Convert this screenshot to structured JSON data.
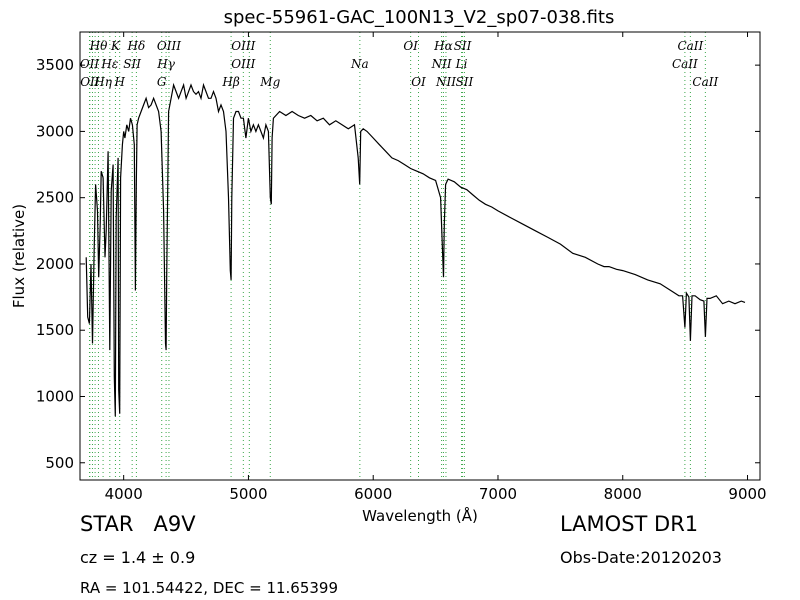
{
  "chart_data": {
    "type": "line",
    "title": "spec-55961-GAC_100N13_V2_sp07-038.fits",
    "xlabel": "Wavelength (Å)",
    "ylabel": "Flux (relative)",
    "xlim": [
      3650,
      9100
    ],
    "ylim": [
      370,
      3750
    ],
    "xticks": [
      4000,
      5000,
      6000,
      7000,
      8000,
      9000
    ],
    "yticks": [
      500,
      1000,
      1500,
      2000,
      2500,
      3000,
      3500
    ],
    "grid": false,
    "series": [
      {
        "color": "#000000",
        "x": [
          3700,
          3712,
          3725,
          3738,
          3750,
          3762,
          3775,
          3790,
          3800,
          3812,
          3820,
          3835,
          3850,
          3860,
          3875,
          3889,
          3900,
          3915,
          3925,
          3933,
          3940,
          3955,
          3960,
          3968,
          3975,
          3990,
          4000,
          4010,
          4025,
          4040,
          4055,
          4070,
          4085,
          4094,
          4101,
          4108,
          4120,
          4140,
          4160,
          4180,
          4200,
          4220,
          4240,
          4260,
          4280,
          4300,
          4320,
          4335,
          4340,
          4345,
          4360,
          4380,
          4400,
          4420,
          4440,
          4460,
          4480,
          4500,
          4520,
          4540,
          4560,
          4580,
          4600,
          4620,
          4640,
          4660,
          4680,
          4700,
          4720,
          4740,
          4760,
          4780,
          4800,
          4820,
          4840,
          4855,
          4861,
          4867,
          4880,
          4900,
          4920,
          4940,
          4960,
          4980,
          5000,
          5020,
          5040,
          5060,
          5080,
          5100,
          5120,
          5140,
          5160,
          5175,
          5183,
          5190,
          5200,
          5250,
          5300,
          5350,
          5400,
          5450,
          5500,
          5550,
          5600,
          5650,
          5700,
          5750,
          5800,
          5850,
          5880,
          5892,
          5900,
          5920,
          5950,
          6000,
          6050,
          6100,
          6150,
          6200,
          6250,
          6300,
          6350,
          6400,
          6450,
          6500,
          6540,
          6555,
          6563,
          6570,
          6580,
          6600,
          6650,
          6700,
          6750,
          6800,
          6850,
          6900,
          6950,
          7000,
          7100,
          7200,
          7300,
          7400,
          7500,
          7600,
          7700,
          7800,
          7850,
          7870,
          7890,
          7950,
          8000,
          8100,
          8200,
          8300,
          8400,
          8450,
          8480,
          8498,
          8510,
          8530,
          8542,
          8555,
          8580,
          8620,
          8650,
          8662,
          8675,
          8700,
          8750,
          8800,
          8850,
          8900,
          8950,
          8980
        ],
        "y": [
          2050,
          1600,
          1550,
          2000,
          1400,
          2050,
          2600,
          2400,
          1900,
          2300,
          2700,
          2650,
          2050,
          2250,
          2850,
          1350,
          2550,
          2750,
          1150,
          850,
          2350,
          2800,
          1050,
          870,
          2650,
          2900,
          3000,
          2950,
          3050,
          3000,
          3100,
          3050,
          2900,
          1800,
          2600,
          3050,
          3100,
          3150,
          3200,
          3250,
          3180,
          3200,
          3250,
          3200,
          3150,
          3000,
          2400,
          1400,
          1350,
          1900,
          3150,
          3250,
          3350,
          3300,
          3250,
          3300,
          3350,
          3250,
          3300,
          3350,
          3300,
          3280,
          3300,
          3250,
          3350,
          3300,
          3250,
          3250,
          3300,
          3250,
          3150,
          3200,
          3150,
          3000,
          2500,
          1950,
          1880,
          2500,
          3100,
          3150,
          3150,
          3100,
          3100,
          2950,
          3100,
          3000,
          3050,
          3000,
          3050,
          3000,
          2950,
          3050,
          3000,
          2500,
          2450,
          2950,
          3100,
          3150,
          3120,
          3150,
          3120,
          3100,
          3120,
          3080,
          3100,
          3050,
          3080,
          3050,
          3020,
          3050,
          2800,
          2600,
          3000,
          3020,
          3000,
          2950,
          2900,
          2850,
          2800,
          2780,
          2750,
          2720,
          2700,
          2680,
          2650,
          2630,
          2500,
          2100,
          1900,
          2300,
          2600,
          2640,
          2620,
          2580,
          2560,
          2520,
          2480,
          2450,
          2430,
          2400,
          2350,
          2300,
          2250,
          2200,
          2150,
          2080,
          2050,
          2000,
          1980,
          1980,
          1980,
          1960,
          1950,
          1920,
          1880,
          1850,
          1790,
          1760,
          1760,
          1520,
          1780,
          1750,
          1420,
          1760,
          1760,
          1730,
          1720,
          1450,
          1740,
          1740,
          1760,
          1700,
          1720,
          1700,
          1720,
          1710
        ]
      }
    ],
    "line_labels": [
      {
        "name": "Hθ",
        "x": 3798,
        "row": 0
      },
      {
        "name": "OII",
        "x": 3726,
        "row": 1
      },
      {
        "name": "OII",
        "x": 3729,
        "row": 2
      },
      {
        "name": "Hη",
        "x": 3835,
        "row": 2
      },
      {
        "name": "Hε",
        "x": 3889,
        "row": 1
      },
      {
        "name": "K",
        "x": 3934,
        "row": 0
      },
      {
        "name": "H",
        "x": 3968,
        "row": 2
      },
      {
        "name": "SII",
        "x": 4068,
        "row": 1
      },
      {
        "name": "Hδ",
        "x": 4102,
        "row": 0
      },
      {
        "name": "OIII",
        "x": 4363,
        "row": 0
      },
      {
        "name": "Hγ",
        "x": 4340,
        "row": 1
      },
      {
        "name": "G",
        "x": 4305,
        "row": 2
      },
      {
        "name": "OIII",
        "x": 4959,
        "row": 0
      },
      {
        "name": "OIII",
        "x": 4959,
        "row": 1
      },
      {
        "name": "Hβ",
        "x": 4861,
        "row": 2
      },
      {
        "name": "Mg",
        "x": 5175,
        "row": 2
      },
      {
        "name": "Na",
        "x": 5893,
        "row": 1
      },
      {
        "name": "OI",
        "x": 6300,
        "row": 0
      },
      {
        "name": "OI",
        "x": 6363,
        "row": 2
      },
      {
        "name": "Hα",
        "x": 6563,
        "row": 0
      },
      {
        "name": "NII",
        "x": 6548,
        "row": 1
      },
      {
        "name": "NII",
        "x": 6583,
        "row": 2
      },
      {
        "name": "SII",
        "x": 6716,
        "row": 0
      },
      {
        "name": "Li",
        "x": 6708,
        "row": 1
      },
      {
        "name": "SII",
        "x": 6731,
        "row": 2
      },
      {
        "name": "CaII",
        "x": 8542,
        "row": 0
      },
      {
        "name": "CaII",
        "x": 8498,
        "row": 1
      },
      {
        "name": "CaII",
        "x": 8662,
        "row": 2
      }
    ],
    "marker_lines": [
      3726,
      3729,
      3750,
      3771,
      3798,
      3835,
      3889,
      3934,
      3968,
      4068,
      4102,
      4305,
      4340,
      4363,
      4861,
      4959,
      5007,
      5175,
      5893,
      6300,
      6363,
      6548,
      6563,
      6583,
      6708,
      6716,
      6731,
      8498,
      8542,
      8662
    ],
    "marker_color": "#3aa64a"
  },
  "footer": {
    "object_class": "STAR   A9V",
    "survey": "LAMOST DR1",
    "redshift": "cz = 1.4 ± 0.9",
    "obs_date": "Obs-Date:20120203",
    "coords": "RA = 101.54422, DEC = 11.65399"
  }
}
